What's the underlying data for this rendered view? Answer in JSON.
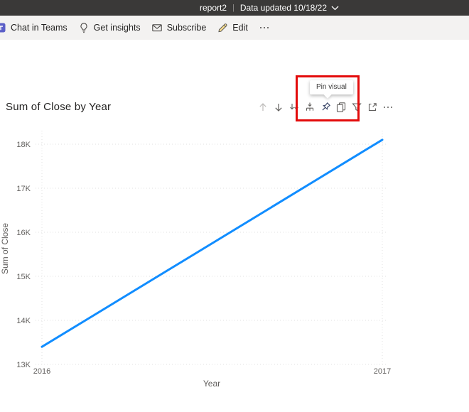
{
  "top_bar": {
    "report_name": "report2",
    "separator": "|",
    "data_updated": "Data updated 10/18/22"
  },
  "toolbar": {
    "items": [
      {
        "label": "Chat in Teams",
        "icon": "teams-icon"
      },
      {
        "label": "Get insights",
        "icon": "lightbulb-icon"
      },
      {
        "label": "Subscribe",
        "icon": "envelope-icon"
      },
      {
        "label": "Edit",
        "icon": "pencil-icon"
      },
      {
        "label": "",
        "icon": "more-icon"
      }
    ]
  },
  "visual": {
    "title": "Sum of Close by Year",
    "tooltip": "Pin visual",
    "header_icons": [
      "drill-up-icon",
      "drill-down-icon",
      "show-next-level-icon",
      "expand-next-level-icon",
      "pin-icon",
      "copy-icon",
      "filter-icon",
      "focus-mode-icon",
      "more-options-icon"
    ]
  },
  "colors": {
    "highlight_red": "#e30b0b",
    "line_blue": "#118DFF",
    "teams_purple": "#5b5fc7",
    "pencil_yellow": "#f7dd8f",
    "axis_gray": "#605E5C",
    "grid_gray": "#e2e2e2"
  },
  "chart_data": {
    "type": "line",
    "title": "Sum of Close by Year",
    "xlabel": "Year",
    "ylabel": "Sum of Close",
    "categories": [
      "2016",
      "2017"
    ],
    "series": [
      {
        "name": "Sum of Close",
        "values": [
          13400,
          18100
        ]
      }
    ],
    "yticks": [
      13000,
      14000,
      15000,
      16000,
      17000,
      18000
    ],
    "ytick_labels": [
      "13K",
      "14K",
      "15K",
      "16K",
      "17K",
      "18K"
    ],
    "ylim": [
      13000,
      18300
    ],
    "grid": "dotted",
    "legend": "none",
    "line_color": "#118DFF"
  }
}
